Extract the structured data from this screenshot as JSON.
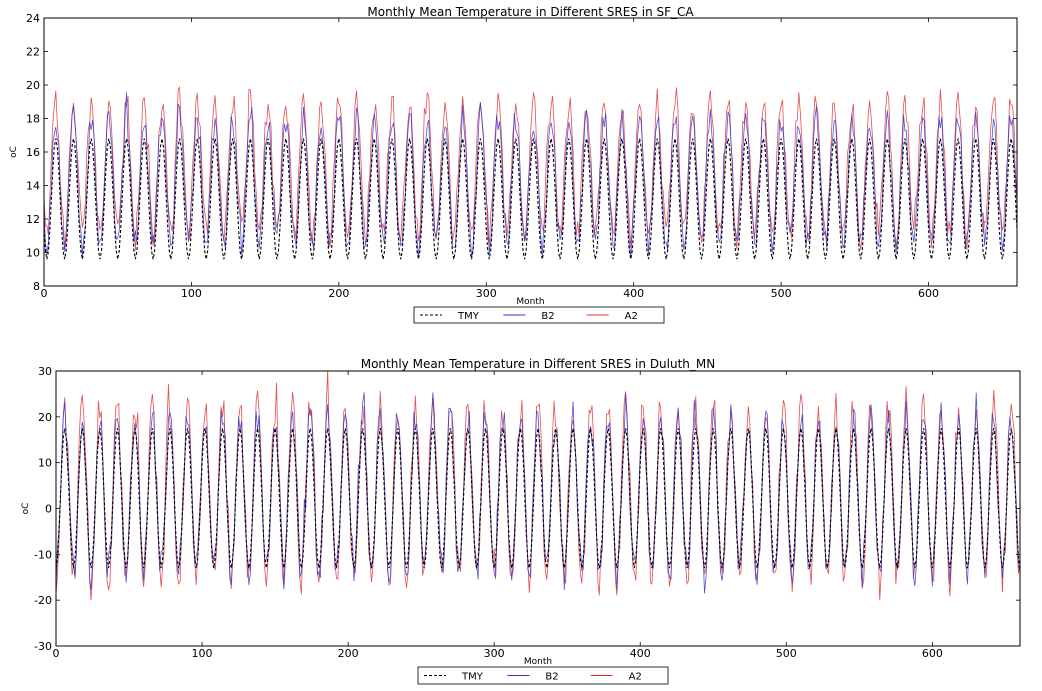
{
  "chart_data": [
    {
      "type": "line",
      "title": "Monthly Mean Temperature in Different SRES in SF_CA",
      "xlabel": "Month",
      "ylabel": "oC",
      "xlim": [
        0,
        660
      ],
      "ylim": [
        8,
        24
      ],
      "xticks": [
        0,
        100,
        200,
        300,
        400,
        500,
        600
      ],
      "yticks": [
        8,
        10,
        12,
        14,
        16,
        18,
        20,
        22,
        24
      ],
      "grid": false,
      "legend": "bottom-center",
      "x": "months 0-660",
      "series": [
        {
          "name": "TMY",
          "color": "#000000",
          "dash": "dashed",
          "min": 9.6,
          "max": 16.8,
          "peak_phase": 8,
          "values": []
        },
        {
          "name": "B2",
          "color": "#3333cc",
          "dash": "solid",
          "min": 10.5,
          "max": 18.0,
          "peak_phase": 8,
          "values": []
        },
        {
          "name": "A2",
          "color": "#e03030",
          "dash": "solid",
          "min": 11.0,
          "max": 19.0,
          "peak_phase": 8,
          "values": []
        }
      ]
    },
    {
      "type": "line",
      "title": "Monthly Mean Temperature in Different SRES in Duluth_MN",
      "xlabel": "Month",
      "ylabel": "oC",
      "xlim": [
        0,
        660
      ],
      "ylim": [
        -30,
        30
      ],
      "xticks": [
        0,
        100,
        200,
        300,
        400,
        500,
        600
      ],
      "yticks": [
        -30,
        -20,
        -10,
        0,
        10,
        20,
        30
      ],
      "grid": false,
      "legend": "bottom-center",
      "x": "months 0-660",
      "series": [
        {
          "name": "TMY",
          "color": "#000000",
          "dash": "dashed",
          "min": -13,
          "max": 17.5,
          "peak_phase": 6,
          "values": []
        },
        {
          "name": "B2",
          "color": "#3333cc",
          "dash": "solid",
          "min": -14,
          "max": 20,
          "peak_phase": 6,
          "values": []
        },
        {
          "name": "A2",
          "color": "#e03030",
          "dash": "solid",
          "min": -15,
          "max": 22,
          "peak_phase": 6,
          "values": []
        }
      ]
    }
  ]
}
